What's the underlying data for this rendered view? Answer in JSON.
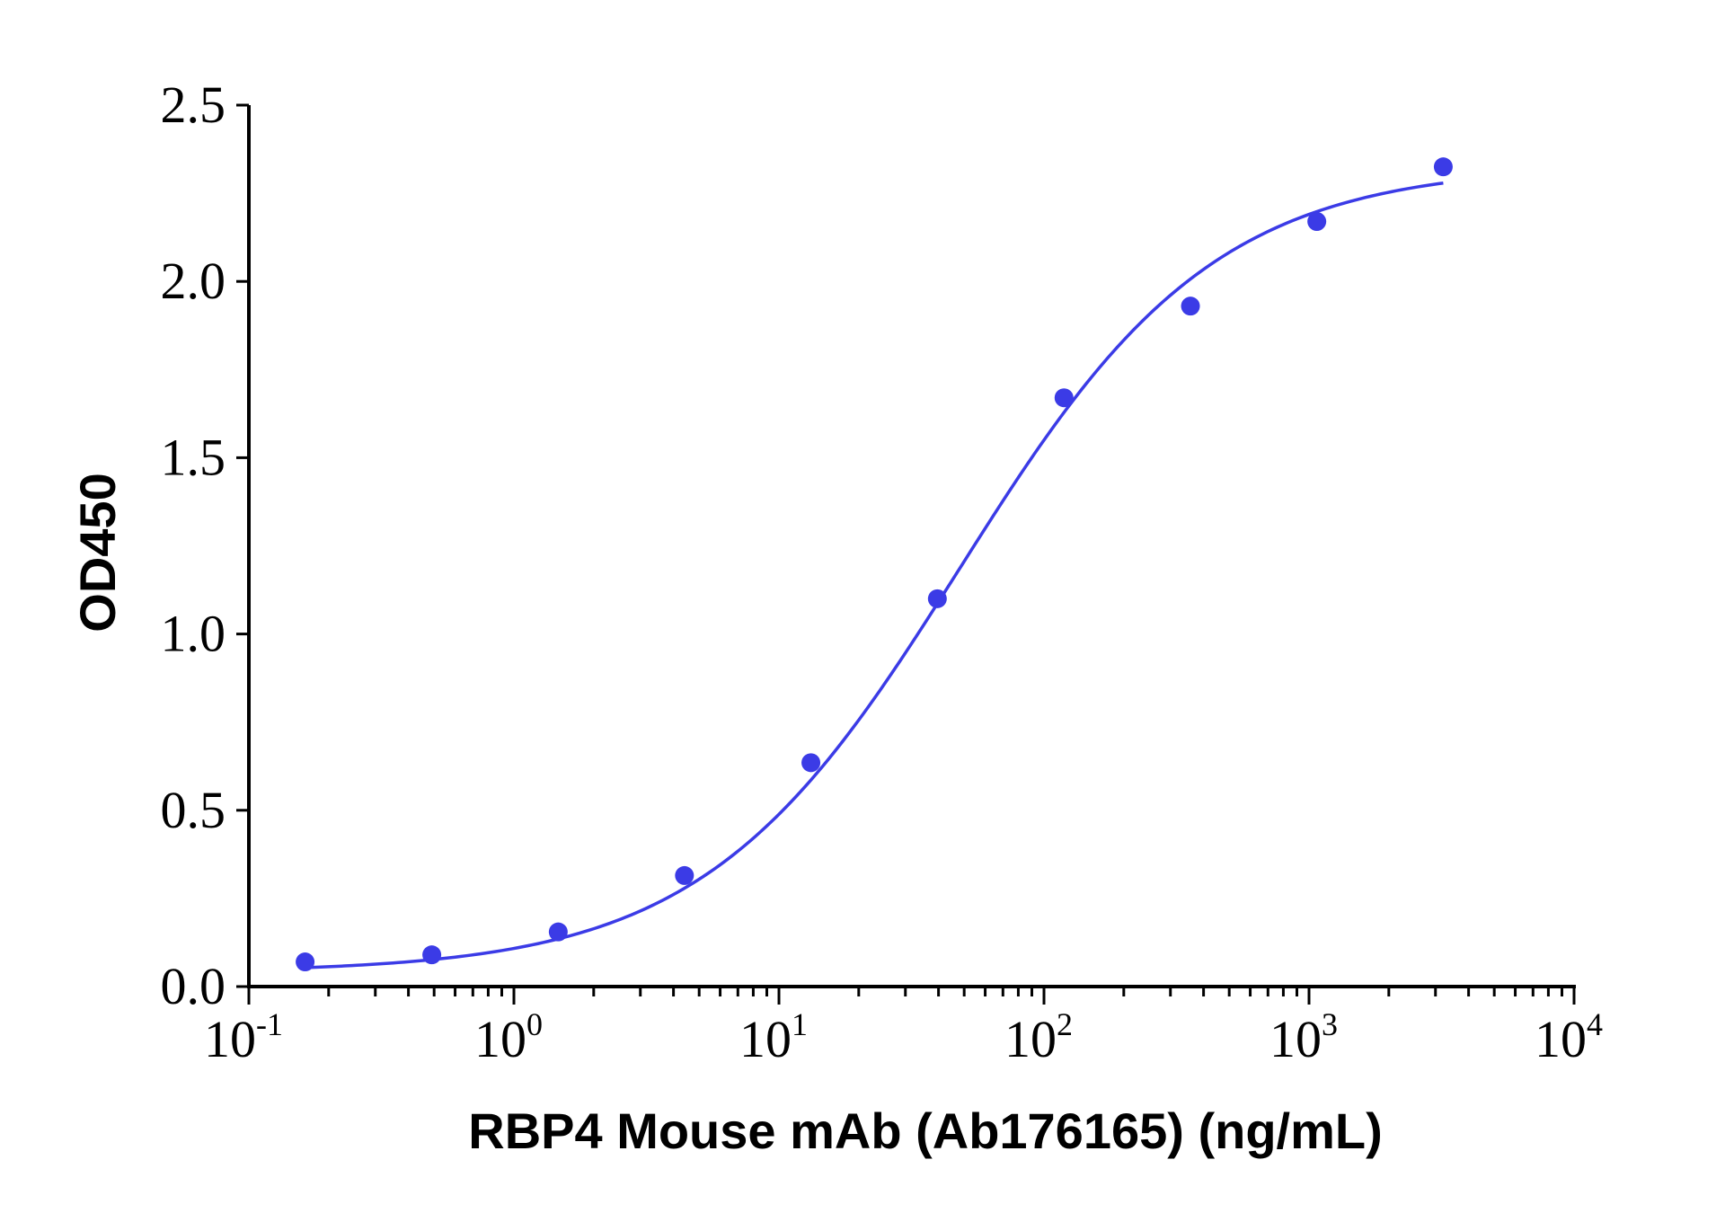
{
  "chart_data": {
    "type": "scatter",
    "title": "",
    "xlabel": "RBP4 Mouse mAb (Ab176165) (ng/mL)",
    "ylabel": "OD450",
    "x_scale": "log",
    "xlim": [
      0.1,
      10000
    ],
    "ylim": [
      0,
      2.5
    ],
    "grid": false,
    "legend": "none",
    "color": "#3b3be6",
    "y_ticks": [
      {
        "value": 0.0,
        "label": "0.0"
      },
      {
        "value": 0.5,
        "label": "0.5"
      },
      {
        "value": 1.0,
        "label": "1.0"
      },
      {
        "value": 1.5,
        "label": "1.5"
      },
      {
        "value": 2.0,
        "label": "2.0"
      },
      {
        "value": 2.5,
        "label": "2.5"
      }
    ],
    "x_ticks": [
      {
        "value": 0.1,
        "base": "10",
        "exp": "-1"
      },
      {
        "value": 1,
        "base": "10",
        "exp": "0"
      },
      {
        "value": 10,
        "base": "10",
        "exp": "1"
      },
      {
        "value": 100,
        "base": "10",
        "exp": "2"
      },
      {
        "value": 1000,
        "base": "10",
        "exp": "3"
      },
      {
        "value": 10000,
        "base": "10",
        "exp": "4"
      }
    ],
    "series": [
      {
        "x": [
          0.163,
          0.49,
          1.47,
          4.4,
          13.2,
          39.6,
          119,
          357,
          1070,
          3210
        ],
        "y": [
          0.07,
          0.09,
          0.155,
          0.315,
          0.635,
          1.1,
          1.67,
          1.93,
          2.17,
          2.325
        ]
      }
    ],
    "fit": {
      "model": "4PL",
      "bottom": 0.04,
      "top": 2.33,
      "ec50": 48,
      "hill": 0.9,
      "x_range": [
        0.163,
        3210
      ]
    }
  }
}
